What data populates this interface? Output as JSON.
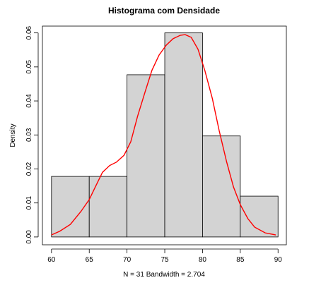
{
  "chart_data": {
    "type": "histogram",
    "title": "Histograma com Densidade",
    "xlabel": "N = 31   Bandwidth = 2.704",
    "ylabel": "Density",
    "bins": [
      60,
      65,
      70,
      75,
      80,
      85,
      90
    ],
    "values": [
      0.0178,
      0.0178,
      0.0477,
      0.06,
      0.0297,
      0.012
    ],
    "color": "#d3d3d3",
    "density": {
      "color": "#ff0000",
      "x": [
        60,
        61.1,
        62.5,
        63.9,
        65,
        65.8,
        66.75,
        67.7,
        68.6,
        69.6,
        70.5,
        71.4,
        72.4,
        73.3,
        74.25,
        75.2,
        76.1,
        77.06,
        77.7,
        78.5,
        79.4,
        80.3,
        81.3,
        82.2,
        83.2,
        84.1,
        85,
        86,
        86.9,
        88.3,
        89.7
      ],
      "y": [
        0.0006,
        0.0017,
        0.0037,
        0.0075,
        0.011,
        0.0147,
        0.019,
        0.021,
        0.022,
        0.024,
        0.028,
        0.0355,
        0.0427,
        0.049,
        0.0535,
        0.0564,
        0.0583,
        0.0593,
        0.0595,
        0.0587,
        0.0552,
        0.049,
        0.0407,
        0.0313,
        0.022,
        0.0147,
        0.0095,
        0.0054,
        0.0029,
        0.0012,
        0.0006
      ]
    },
    "xlim": [
      58.8,
      91.1
    ],
    "ylim": [
      -0.0023,
      0.062
    ],
    "xticks": [
      60,
      65,
      70,
      75,
      80,
      85,
      90
    ],
    "yticks": [
      {
        "value": 0,
        "label": "0.00"
      },
      0.01,
      0.02,
      0.03,
      0.04,
      0.05,
      0.06
    ]
  }
}
